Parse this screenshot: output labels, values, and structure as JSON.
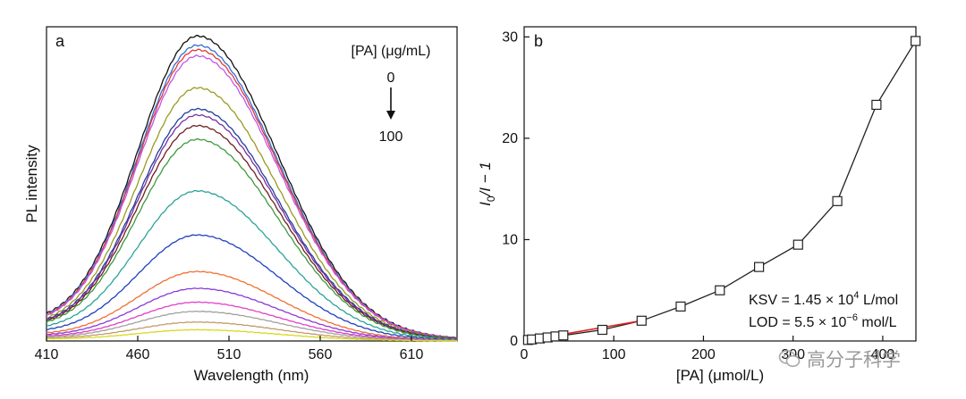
{
  "chart_data": [
    {
      "panel": "a",
      "type": "line",
      "xlabel": "Wavelength (nm)",
      "ylabel": "PL intensity",
      "xlim": [
        410,
        635
      ],
      "xticks": [
        410,
        460,
        510,
        560,
        610
      ],
      "yticks_shown": false,
      "grid": false,
      "annotation": {
        "title": "[PA] (μg/mL)",
        "start": "0",
        "end": "100"
      },
      "peak_wavelength": 493,
      "series": [
        {
          "color": "#111111",
          "peak": 1.0,
          "baseline": 0.05
        },
        {
          "color": "#2f6fd6",
          "peak": 0.97,
          "baseline": 0.048
        },
        {
          "color": "#e53935",
          "peak": 0.955,
          "baseline": 0.047
        },
        {
          "color": "#c156e8",
          "peak": 0.935,
          "baseline": 0.046
        },
        {
          "color": "#9a9a22",
          "peak": 0.83,
          "baseline": 0.042
        },
        {
          "color": "#1f3f9a",
          "peak": 0.76,
          "baseline": 0.04
        },
        {
          "color": "#7a2ea0",
          "peak": 0.74,
          "baseline": 0.039
        },
        {
          "color": "#6e1f1f",
          "peak": 0.705,
          "baseline": 0.038
        },
        {
          "color": "#3d9a3d",
          "peak": 0.66,
          "baseline": 0.036
        },
        {
          "color": "#2aa39a",
          "peak": 0.49,
          "baseline": 0.03
        },
        {
          "color": "#1f3fbf",
          "peak": 0.345,
          "baseline": 0.024
        },
        {
          "color": "#f07030",
          "peak": 0.225,
          "baseline": 0.018
        },
        {
          "color": "#8a3ad6",
          "peak": 0.17,
          "baseline": 0.015
        },
        {
          "color": "#e040c8",
          "peak": 0.125,
          "baseline": 0.012
        },
        {
          "color": "#a0a0a0",
          "peak": 0.095,
          "baseline": 0.01
        },
        {
          "color": "#c49a6c",
          "peak": 0.06,
          "baseline": 0.008
        },
        {
          "color": "#d8d820",
          "peak": 0.035,
          "baseline": 0.006
        }
      ]
    },
    {
      "panel": "b",
      "type": "scatter",
      "xlabel": "[PA] (μmol/L)",
      "ylabel_main": "I",
      "ylabel_sub": "0",
      "ylabel_rest": "/I − 1",
      "xlim": [
        0,
        437
      ],
      "ylim": [
        0,
        31
      ],
      "xticks": [
        0,
        100,
        200,
        300,
        400
      ],
      "yticks": [
        0,
        10,
        20,
        30
      ],
      "marker": "open-square",
      "line_color": "#222222",
      "fit_color": "#e02020",
      "points": [
        {
          "x": 4.4,
          "y": 0.1
        },
        {
          "x": 8.7,
          "y": 0.15
        },
        {
          "x": 17.5,
          "y": 0.25
        },
        {
          "x": 26.2,
          "y": 0.35
        },
        {
          "x": 35,
          "y": 0.45
        },
        {
          "x": 43.7,
          "y": 0.55
        },
        {
          "x": 87.3,
          "y": 1.1
        },
        {
          "x": 131,
          "y": 2.0
        },
        {
          "x": 174.6,
          "y": 3.4
        },
        {
          "x": 218.3,
          "y": 5.0
        },
        {
          "x": 262,
          "y": 7.3
        },
        {
          "x": 305.6,
          "y": 9.5
        },
        {
          "x": 349.3,
          "y": 13.8
        },
        {
          "x": 393,
          "y": 23.3
        },
        {
          "x": 436.6,
          "y": 29.6
        }
      ],
      "linear_fit": {
        "x": [
          0,
          131
        ],
        "y": [
          0,
          2.0
        ]
      },
      "annotation": {
        "ksv_prefix": "KSV = 1.45 × 10",
        "ksv_exp": "4",
        "ksv_unit": " L/mol",
        "lod_prefix": "LOD = 5.5 × 10",
        "lod_exp": "−6",
        "lod_unit": " mol/L"
      }
    }
  ],
  "watermark": {
    "text": "高分子科学"
  }
}
